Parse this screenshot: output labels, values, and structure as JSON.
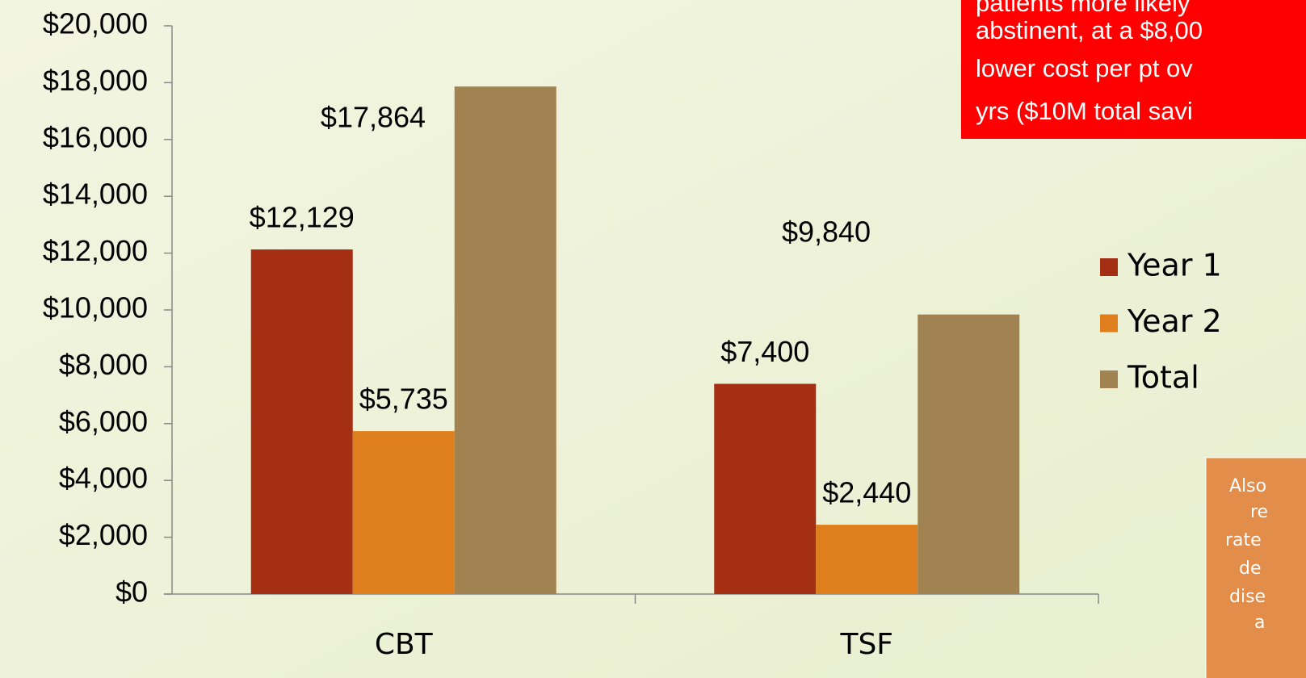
{
  "chart_data": {
    "type": "bar",
    "categories": [
      "CBT",
      "TSF"
    ],
    "series": [
      {
        "name": "Year 1",
        "color": "#a52f12",
        "values": [
          12129,
          7400
        ],
        "value_labels": [
          "$12,129",
          "$7,400"
        ]
      },
      {
        "name": "Year 2",
        "color": "#de7e1c",
        "values": [
          5735,
          2440
        ],
        "value_labels": [
          "$5,735",
          "$2,440"
        ]
      },
      {
        "name": "Total",
        "color": "#a08350",
        "values": [
          17864,
          9840
        ],
        "value_labels": [
          "$17,864",
          "$9,840"
        ]
      }
    ],
    "ylim": [
      0,
      20000
    ],
    "yticks": [
      {
        "value": 0,
        "label": "$0"
      },
      {
        "value": 2000,
        "label": "$2,000"
      },
      {
        "value": 4000,
        "label": "$4,000"
      },
      {
        "value": 6000,
        "label": "$6,000"
      },
      {
        "value": 8000,
        "label": "$8,000"
      },
      {
        "value": 10000,
        "label": "$10,000"
      },
      {
        "value": 12000,
        "label": "$12,000"
      },
      {
        "value": 14000,
        "label": "$14,000"
      },
      {
        "value": 16000,
        "label": "$16,000"
      },
      {
        "value": 18000,
        "label": "$18,000"
      },
      {
        "value": 20000,
        "label": "$20,000"
      }
    ],
    "grid": false,
    "legend": "right",
    "annotations": [
      {
        "lines": [
          "patients more likely",
          "abstinent, at a $8,00",
          "lower cost per pt ov",
          "yrs ($10M total savi"
        ],
        "color": "#ff0000"
      },
      {
        "lines": [
          "Also",
          "re",
          "rate",
          "de",
          "dise",
          "a"
        ],
        "color": "#e38d4b"
      }
    ]
  }
}
